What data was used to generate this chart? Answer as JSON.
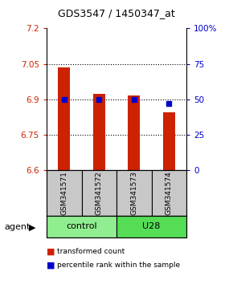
{
  "title": "GDS3547 / 1450347_at",
  "samples": [
    "GSM341571",
    "GSM341572",
    "GSM341573",
    "GSM341574"
  ],
  "red_values": [
    7.035,
    6.925,
    6.915,
    6.845
  ],
  "blue_values": [
    50,
    50,
    50,
    47
  ],
  "ylim_left": [
    6.6,
    7.2
  ],
  "ylim_right": [
    0,
    100
  ],
  "yticks_left": [
    6.6,
    6.75,
    6.9,
    7.05,
    7.2
  ],
  "ytick_labels_left": [
    "6.6",
    "6.75",
    "6.9",
    "7.05",
    "7.2"
  ],
  "yticks_right": [
    0,
    25,
    50,
    75,
    100
  ],
  "ytick_labels_right": [
    "0",
    "25",
    "50",
    "75",
    "100%"
  ],
  "groups": [
    {
      "label": "control",
      "indices": [
        0,
        1
      ],
      "color": "#90EE90"
    },
    {
      "label": "U28",
      "indices": [
        2,
        3
      ],
      "color": "#55DD55"
    }
  ],
  "bar_color": "#CC2200",
  "dot_color": "#0000CC",
  "bar_bottom": 6.6,
  "bar_width": 0.35,
  "legend_red_label": "transformed count",
  "legend_blue_label": "percentile rank within the sample",
  "sample_box_color": "#C8C8C8"
}
